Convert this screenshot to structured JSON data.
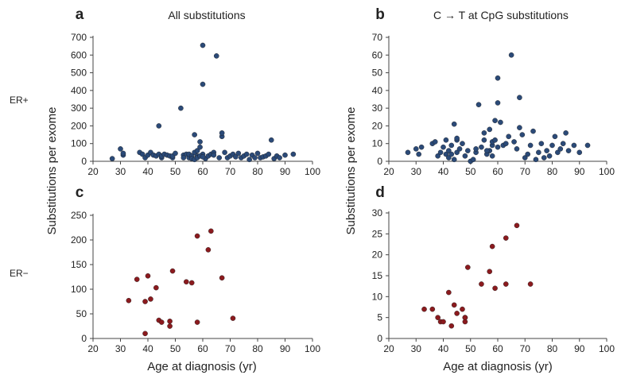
{
  "figure": {
    "row_labels": [
      "ER+",
      "ER−"
    ],
    "ylabel_left": "Substitutions per exome",
    "ylabel_right": "Substitutions per exome",
    "xlabel_left": "Age at diagnosis  (yr)",
    "xlabel_right": "Age at diagnosis  (yr)"
  },
  "colors": {
    "er_pos": "#2b4a78",
    "er_neg": "#8b1a1e",
    "axis": "#444444"
  },
  "chart_data": [
    {
      "panel": "a",
      "type": "scatter",
      "title": "All substitutions",
      "xlim": [
        20,
        100
      ],
      "ylim": [
        0,
        700
      ],
      "xticks": [
        20,
        30,
        40,
        50,
        60,
        70,
        80,
        90,
        100
      ],
      "yticks": [
        0,
        100,
        200,
        300,
        400,
        500,
        600,
        700
      ],
      "series": [
        {
          "color_key": "er_pos",
          "x": [
            27,
            30,
            31,
            31,
            37,
            38,
            39,
            40,
            41,
            42,
            43,
            44,
            44,
            45,
            45,
            46,
            47,
            48,
            49,
            49,
            50,
            52,
            53,
            54,
            55,
            55,
            56,
            57,
            57,
            58,
            58,
            59,
            59,
            60,
            60,
            60,
            61,
            62,
            63,
            64,
            65,
            66,
            67,
            67,
            68,
            69,
            70,
            71,
            72,
            73,
            74,
            75,
            76,
            77,
            78,
            79,
            80,
            81,
            82,
            83,
            84,
            85,
            86,
            87,
            88,
            90,
            93,
            53,
            56,
            57,
            58,
            59,
            60,
            64
          ],
          "y": [
            15,
            70,
            35,
            45,
            50,
            40,
            20,
            35,
            50,
            35,
            30,
            200,
            40,
            20,
            30,
            40,
            35,
            30,
            20,
            30,
            45,
            300,
            35,
            40,
            20,
            40,
            30,
            150,
            50,
            30,
            60,
            80,
            110,
            655,
            435,
            40,
            15,
            30,
            40,
            50,
            595,
            20,
            140,
            160,
            50,
            20,
            30,
            40,
            25,
            45,
            20,
            30,
            40,
            10,
            35,
            20,
            45,
            20,
            25,
            30,
            40,
            120,
            15,
            30,
            20,
            35,
            40,
            20,
            15,
            10,
            20,
            30,
            25,
            35
          ]
        }
      ]
    },
    {
      "panel": "b",
      "type": "scatter",
      "title": "C → T at  CpG substitutions",
      "xlim": [
        20,
        100
      ],
      "ylim": [
        0,
        70
      ],
      "xticks": [
        20,
        30,
        40,
        50,
        60,
        70,
        80,
        90,
        100
      ],
      "yticks": [
        0,
        10,
        20,
        30,
        40,
        50,
        60,
        70
      ],
      "series": [
        {
          "color_key": "er_pos",
          "x": [
            27,
            30,
            31,
            32,
            36,
            37,
            38,
            39,
            40,
            41,
            41,
            42,
            42,
            43,
            43,
            44,
            44,
            45,
            45,
            46,
            47,
            48,
            49,
            50,
            51,
            52,
            53,
            54,
            55,
            55,
            56,
            57,
            57,
            58,
            58,
            59,
            59,
            60,
            60,
            60,
            61,
            62,
            63,
            64,
            65,
            66,
            67,
            68,
            68,
            69,
            70,
            71,
            72,
            73,
            74,
            75,
            76,
            77,
            78,
            79,
            80,
            81,
            82,
            83,
            84,
            85,
            86,
            88,
            90,
            93,
            45,
            52,
            56,
            58
          ],
          "y": [
            5,
            7,
            4,
            8,
            10,
            11,
            3,
            5,
            8,
            12,
            4,
            6,
            2,
            9,
            4,
            21,
            1,
            12,
            5,
            7,
            10,
            3,
            6,
            0,
            1,
            5,
            32,
            8,
            12,
            16,
            4,
            6,
            18,
            9,
            11,
            12,
            23,
            47,
            33,
            8,
            22,
            9,
            10,
            14,
            60,
            11,
            7,
            36,
            19,
            15,
            2,
            4,
            9,
            17,
            1,
            5,
            10,
            2,
            6,
            3,
            9,
            14,
            5,
            7,
            10,
            16,
            6,
            9,
            5,
            9,
            13,
            7,
            6,
            3
          ]
        }
      ]
    },
    {
      "panel": "c",
      "type": "scatter",
      "title": "",
      "xlim": [
        20,
        100
      ],
      "ylim": [
        0,
        250
      ],
      "xticks": [
        20,
        30,
        40,
        50,
        60,
        70,
        80,
        90,
        100
      ],
      "yticks": [
        0,
        50,
        100,
        150,
        200,
        250
      ],
      "series": [
        {
          "color_key": "er_neg",
          "x": [
            33,
            36,
            39,
            39,
            40,
            41,
            43,
            44,
            45,
            48,
            48,
            49,
            54,
            56,
            58,
            58,
            62,
            63,
            67,
            71
          ],
          "y": [
            77,
            120,
            75,
            10,
            127,
            80,
            103,
            37,
            33,
            35,
            25,
            137,
            115,
            113,
            208,
            33,
            180,
            218,
            123,
            41
          ]
        }
      ]
    },
    {
      "panel": "d",
      "type": "scatter",
      "title": "",
      "xlim": [
        20,
        100
      ],
      "ylim": [
        0,
        30
      ],
      "xticks": [
        20,
        30,
        40,
        50,
        60,
        70,
        80,
        90,
        100
      ],
      "yticks": [
        0,
        5,
        10,
        15,
        20,
        25,
        30
      ],
      "series": [
        {
          "color_key": "er_neg",
          "x": [
            33,
            36,
            38,
            39,
            40,
            42,
            43,
            44,
            45,
            47,
            48,
            48,
            48,
            49,
            54,
            57,
            58,
            59,
            63,
            63,
            67,
            72
          ],
          "y": [
            7,
            7,
            5,
            4,
            4,
            11,
            3,
            8,
            6,
            7,
            5,
            4,
            5,
            17,
            13,
            16,
            22,
            12,
            24,
            13,
            27,
            13
          ]
        }
      ]
    }
  ]
}
